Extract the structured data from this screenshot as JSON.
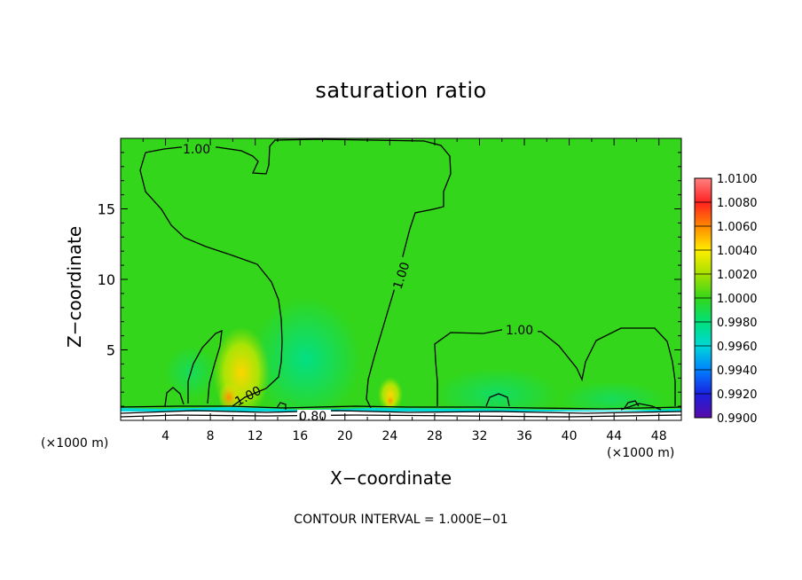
{
  "chart_data": {
    "type": "heatmap",
    "title": "saturation ratio",
    "xlabel": "X−coordinate",
    "ylabel": "Z−coordinate",
    "x_unit_left": "(×1000 m)",
    "x_unit_right": "(×1000 m)",
    "x_ticks": [
      "4",
      "8",
      "12",
      "16",
      "20",
      "24",
      "28",
      "32",
      "36",
      "40",
      "44",
      "48"
    ],
    "y_ticks": [
      "5",
      "10",
      "15"
    ],
    "xlim": [
      0,
      50
    ],
    "ylim": [
      0,
      20
    ],
    "contour_interval_label": "CONTOUR INTERVAL = 1.000E−01",
    "contour_labels": [
      "1.00",
      "1.00",
      "1.00",
      "1.00",
      "0.80"
    ],
    "colorbar": {
      "levels": [
        "1.0100",
        "1.0080",
        "1.0060",
        "1.0040",
        "1.0020",
        "1.0000",
        "0.9980",
        "0.9960",
        "0.9940",
        "0.9920",
        "0.9900"
      ],
      "colors": [
        "#ff8080",
        "#ff2020",
        "#ff8a00",
        "#ffee00",
        "#a6e000",
        "#33d61a",
        "#00e07a",
        "#00d8d8",
        "#0080ff",
        "#1a20e0",
        "#5a0aa8"
      ]
    },
    "field_background_color": "#33d61a"
  }
}
